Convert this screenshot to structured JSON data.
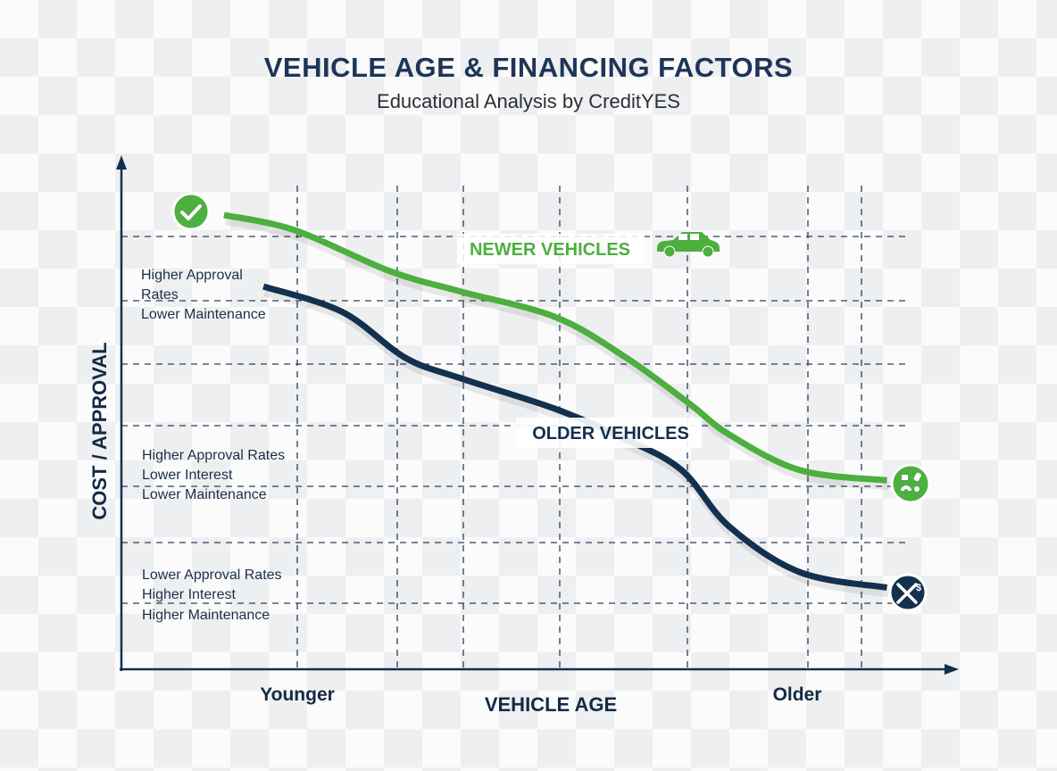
{
  "chart_data": {
    "type": "line",
    "title": "VEHICLE AGE & FINANCING FACTORS",
    "subtitle": "Educational Analysis by CreditYES",
    "xlabel": "VEHICLE AGE",
    "ylabel": "COST / APPROVAL",
    "x_tick_labels": [
      "Younger",
      "Older"
    ],
    "xlim": [
      0,
      10
    ],
    "ylim": [
      0,
      10
    ],
    "grid": true,
    "series": [
      {
        "name": "NEWER VEHICLES",
        "color": "#4caf3f",
        "x": [
          1.3,
          2.2,
          3.4,
          4.3,
          5.5,
          6.4,
          7.2,
          7.7,
          8.6,
          9.7
        ],
        "y": [
          8.9,
          8.6,
          7.8,
          7.4,
          6.9,
          6.1,
          5.2,
          4.6,
          3.9,
          3.7
        ]
      },
      {
        "name": "OLDER VEHICLES",
        "color": "#13304f",
        "x": [
          1.8,
          2.8,
          3.6,
          4.3,
          5.5,
          6.4,
          7.1,
          7.7,
          8.6,
          9.7
        ],
        "y": [
          7.5,
          7.0,
          6.1,
          5.7,
          5.1,
          4.5,
          3.9,
          2.8,
          1.9,
          1.6
        ]
      }
    ],
    "annotations": [
      [
        "Higher Approval",
        "Rates",
        "Lower Maintenance"
      ],
      [
        "Higher Approval Rates",
        "Lower Interest",
        "Lower Maintenance"
      ],
      [
        "Lower Approval Rates",
        "Higher Interest",
        "Higher Maintenance"
      ]
    ],
    "icons": {
      "newer_start": "checkmark-icon",
      "newer_label": "car-icon",
      "newer_end": "maintenance-parts-icon",
      "older_end": "wrench-dollar-icon"
    }
  }
}
